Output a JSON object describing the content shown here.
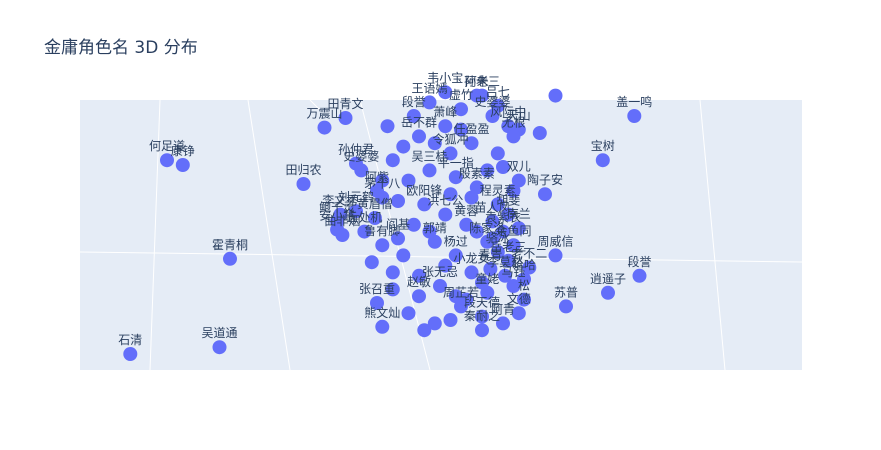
{
  "chart_data": {
    "type": "scatter",
    "title": "金庸角色名 3D 分布",
    "marker_color": "#636efa",
    "scene_bg": "#e5ecf6",
    "grid": true,
    "points": [
      {
        "label": "何足道",
        "x": -2.6,
        "y": 1.1
      },
      {
        "label": "康铮",
        "x": -2.45,
        "y": 1.03
      },
      {
        "label": "霍青桐",
        "x": -2.0,
        "y": -0.35
      },
      {
        "label": "吴道通",
        "x": -2.1,
        "y": -1.65
      },
      {
        "label": "石清",
        "x": -2.95,
        "y": -1.75
      },
      {
        "label": "田归农",
        "x": -1.3,
        "y": 0.75
      },
      {
        "label": "万震山",
        "x": -1.1,
        "y": 1.58
      },
      {
        "label": "田青文",
        "x": -0.9,
        "y": 1.72
      },
      {
        "label": "孙仲君",
        "x": -0.8,
        "y": 1.05
      },
      {
        "label": "史婆婆",
        "x": -0.75,
        "y": 0.95
      },
      {
        "label": "茅十八",
        "x": -0.55,
        "y": 0.55
      },
      {
        "label": "阿紫",
        "x": -0.6,
        "y": 0.65
      },
      {
        "label": "李文秀",
        "x": -0.95,
        "y": 0.3
      },
      {
        "label": "鲍千灵",
        "x": -0.98,
        "y": 0.2
      },
      {
        "label": "刘元鹤",
        "x": -0.8,
        "y": 0.35
      },
      {
        "label": "黄眉僧",
        "x": -0.62,
        "y": 0.25
      },
      {
        "label": "安小慧",
        "x": -0.98,
        "y": 0.08
      },
      {
        "label": "曲非烟",
        "x": -0.93,
        "y": 0.0
      },
      {
        "label": "丘处机",
        "x": -0.72,
        "y": 0.05
      },
      {
        "label": "鲁有脚",
        "x": -0.55,
        "y": -0.15
      },
      {
        "label": "阎基",
        "x": -0.4,
        "y": -0.05
      },
      {
        "label": "张召重",
        "x": -0.6,
        "y": -1.0
      },
      {
        "label": "熊文灿",
        "x": -0.55,
        "y": -1.35
      },
      {
        "label": "吴三桂",
        "x": -0.1,
        "y": 0.95
      },
      {
        "label": "平一指",
        "x": 0.15,
        "y": 0.85
      },
      {
        "label": "殷素素",
        "x": 0.35,
        "y": 0.7
      },
      {
        "label": "欧阳锋",
        "x": -0.15,
        "y": 0.45
      },
      {
        "label": "洪七公",
        "x": 0.05,
        "y": 0.3
      },
      {
        "label": "黄蓉",
        "x": 0.25,
        "y": 0.15
      },
      {
        "label": "郭靖",
        "x": -0.05,
        "y": -0.1
      },
      {
        "label": "杨过",
        "x": 0.15,
        "y": -0.3
      },
      {
        "label": "小龙女",
        "x": 0.3,
        "y": -0.55
      },
      {
        "label": "张无忌",
        "x": 0.0,
        "y": -0.75
      },
      {
        "label": "赵敏",
        "x": -0.2,
        "y": -0.9
      },
      {
        "label": "周芷若",
        "x": 0.2,
        "y": -1.05
      },
      {
        "label": "令狐冲",
        "x": 0.1,
        "y": 1.2
      },
      {
        "label": "任盈盈",
        "x": 0.3,
        "y": 1.35
      },
      {
        "label": "岳不群",
        "x": -0.2,
        "y": 1.45
      },
      {
        "label": "萧峰",
        "x": 0.05,
        "y": 1.6
      },
      {
        "label": "段誉",
        "x": -0.25,
        "y": 1.75
      },
      {
        "label": "虚竹",
        "x": 0.2,
        "y": 1.85
      },
      {
        "label": "王语嫣",
        "x": -0.1,
        "y": 1.95
      },
      {
        "label": "阿朱",
        "x": 0.35,
        "y": 2.05
      },
      {
        "label": "韦小宝",
        "x": 0.05,
        "y": 2.1
      },
      {
        "label": "双儿",
        "x": 0.75,
        "y": 0.8
      },
      {
        "label": "陶子安",
        "x": 1.0,
        "y": 0.6
      },
      {
        "label": "程灵素",
        "x": 0.55,
        "y": 0.45
      },
      {
        "label": "胡斐",
        "x": 0.65,
        "y": 0.3
      },
      {
        "label": "苗人凤",
        "x": 0.5,
        "y": 0.2
      },
      {
        "label": "南兰",
        "x": 0.75,
        "y": 0.1
      },
      {
        "label": "袁紫衣",
        "x": 0.6,
        "y": 0.05
      },
      {
        "label": "陈家洛",
        "x": 0.45,
        "y": -0.1
      },
      {
        "label": "余鱼同",
        "x": 0.7,
        "y": -0.15
      },
      {
        "label": "骆冰",
        "x": 0.55,
        "y": -0.25
      },
      {
        "label": "岳老三",
        "x": 0.65,
        "y": -0.38
      },
      {
        "label": "青青",
        "x": 0.48,
        "y": -0.5
      },
      {
        "label": "李莫愁",
        "x": 0.62,
        "y": -0.6
      },
      {
        "label": "哈哈",
        "x": 0.8,
        "y": -0.65
      },
      {
        "label": "马钰",
        "x": 0.7,
        "y": -0.75
      },
      {
        "label": "童姥",
        "x": 0.45,
        "y": -0.85
      },
      {
        "label": "老不二",
        "x": 0.85,
        "y": -0.48
      },
      {
        "label": "周威信",
        "x": 1.1,
        "y": -0.3
      },
      {
        "label": "苏普",
        "x": 1.2,
        "y": -1.05
      },
      {
        "label": "文德",
        "x": 0.75,
        "y": -1.15
      },
      {
        "label": "阿青",
        "x": 0.6,
        "y": -1.3
      },
      {
        "label": "秦耐之",
        "x": 0.4,
        "y": -1.4
      },
      {
        "label": "松",
        "x": 0.8,
        "y": -0.95
      },
      {
        "label": "段天德",
        "x": 0.4,
        "y": -1.2
      },
      {
        "label": "宝树",
        "x": 1.55,
        "y": 1.1
      },
      {
        "label": "盖一鸣",
        "x": 1.85,
        "y": 1.75
      },
      {
        "label": "逍遥子",
        "x": 1.6,
        "y": -0.85
      },
      {
        "label": "段誉",
        "x": 1.9,
        "y": -0.6
      },
      {
        "label": "孙老三",
        "x": 0.4,
        "y": 2.05
      },
      {
        "label": "吕七",
        "x": 0.55,
        "y": 1.9
      },
      {
        "label": "史婆婆",
        "x": 0.5,
        "y": 1.75
      },
      {
        "label": "风际中",
        "x": 0.65,
        "y": 1.6
      },
      {
        "label": "天山",
        "x": 0.75,
        "y": 1.55
      },
      {
        "label": "无根",
        "x": 0.7,
        "y": 1.45
      },
      {
        "label": "",
        "x": 0.95,
        "y": 1.5
      },
      {
        "label": "",
        "x": 1.1,
        "y": 2.05
      },
      {
        "label": "",
        "x": -0.35,
        "y": 1.3
      },
      {
        "label": "",
        "x": -0.45,
        "y": 1.1
      },
      {
        "label": "",
        "x": -0.3,
        "y": 0.8
      },
      {
        "label": "",
        "x": -0.4,
        "y": 0.5
      },
      {
        "label": "",
        "x": -0.25,
        "y": 0.15
      },
      {
        "label": "",
        "x": -0.35,
        "y": -0.3
      },
      {
        "label": "",
        "x": -0.45,
        "y": -0.55
      },
      {
        "label": "",
        "x": -0.3,
        "y": -1.15
      },
      {
        "label": "",
        "x": -0.15,
        "y": -1.4
      },
      {
        "label": "",
        "x": 0.1,
        "y": -1.25
      },
      {
        "label": "",
        "x": 0.25,
        "y": -0.95
      },
      {
        "label": "",
        "x": 0.4,
        "y": -0.7
      },
      {
        "label": "",
        "x": 0.3,
        "y": 0.55
      },
      {
        "label": "",
        "x": 0.45,
        "y": 0.95
      },
      {
        "label": "",
        "x": 0.55,
        "y": 1.2
      },
      {
        "label": "",
        "x": 0.2,
        "y": 1.55
      },
      {
        "label": "",
        "x": -0.05,
        "y": 1.35
      },
      {
        "label": "",
        "x": 0.1,
        "y": 0.6
      },
      {
        "label": "",
        "x": -0.1,
        "y": 0.05
      },
      {
        "label": "",
        "x": 0.05,
        "y": -0.45
      },
      {
        "label": "",
        "x": -0.2,
        "y": -0.6
      },
      {
        "label": "",
        "x": 0.15,
        "y": -0.9
      },
      {
        "label": "",
        "x": -0.05,
        "y": -1.3
      },
      {
        "label": "",
        "x": 0.35,
        "y": 0.05
      },
      {
        "label": "",
        "x": 0.5,
        "y": -0.05
      },
      {
        "label": "",
        "x": -0.5,
        "y": 1.6
      },
      {
        "label": "",
        "x": -0.55,
        "y": 0.8
      },
      {
        "label": "",
        "x": -0.65,
        "y": -0.4
      },
      {
        "label": "",
        "x": -0.45,
        "y": -0.8
      },
      {
        "label": "",
        "x": 0.6,
        "y": 1.0
      },
      {
        "label": "",
        "x": 0.7,
        "y": 0.65
      }
    ]
  }
}
